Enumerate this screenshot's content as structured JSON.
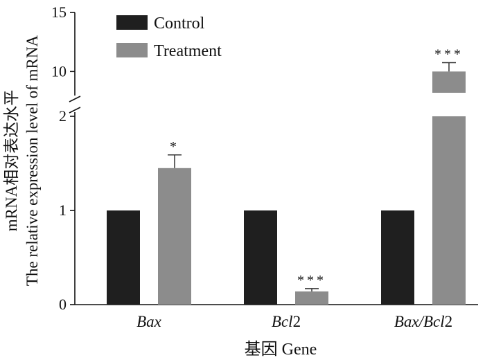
{
  "chart_data": {
    "type": "bar",
    "title": "",
    "categories": [
      {
        "name": "Bax",
        "italic_parts": [
          "Bax"
        ],
        "plain_parts": []
      },
      {
        "name": "Bcl2",
        "italic_parts": [
          "Bcl"
        ],
        "plain_parts": [
          "2"
        ]
      },
      {
        "name": "Bax/Bcl2",
        "italic_parts": [
          "Bax/Bcl"
        ],
        "plain_parts": [
          "2"
        ]
      }
    ],
    "category_labels": [
      "Bax",
      "Bcl2",
      "Bax/Bcl2"
    ],
    "series": [
      {
        "name": "Control",
        "color": "#1f1f1f",
        "values": [
          1,
          1,
          1
        ],
        "errors": [
          0,
          0,
          0
        ],
        "significance": [
          "",
          "",
          ""
        ]
      },
      {
        "name": "Treatment",
        "color": "#8c8c8c",
        "values": [
          1.45,
          0.14,
          10.0
        ],
        "errors": [
          0.14,
          0.03,
          0.75
        ],
        "significance": [
          "*",
          "***",
          "***"
        ]
      }
    ],
    "xlabel": "基因  Gene",
    "ylabel_line1": "mRNA相对表达水平",
    "ylabel_line2": "The relative expression level of mRNA",
    "y_axis": {
      "broken": true,
      "lower_segment": {
        "range": [
          0,
          2
        ],
        "ticks": [
          0,
          1,
          2
        ]
      },
      "upper_segment": {
        "range": [
          8.2,
          15
        ],
        "ticks": [
          10,
          15
        ]
      }
    },
    "legend_position": "top-left",
    "grid": false
  }
}
